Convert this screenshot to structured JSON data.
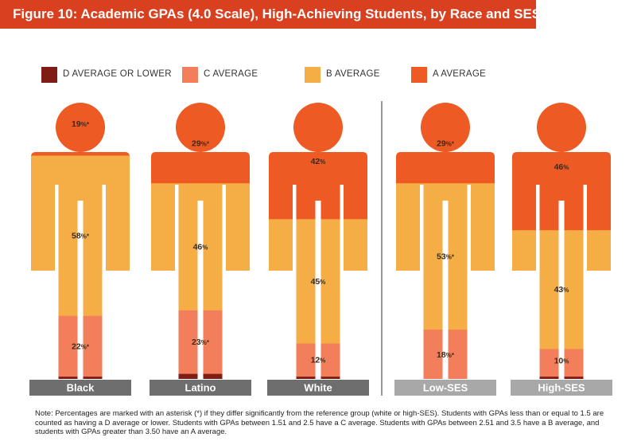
{
  "title": "Figure 10: Academic GPAs (4.0 Scale), High-Achieving Students, by Race and SES",
  "colors": {
    "title_bg": "#d9401f",
    "d_average": "#7d1d14",
    "c_average": "#f27e5b",
    "b_average": "#f5ae45",
    "a_average": "#ee5a24",
    "race_label_bg": "#6e6e6e",
    "ses_label_bg": "#a8a8a8",
    "divider": "#555555"
  },
  "chart_data": {
    "type": "pictogram-stacked",
    "stack_order_bottom_to_top": [
      "D AVERAGE OR LOWER",
      "C AVERAGE",
      "B AVERAGE",
      "A AVERAGE"
    ],
    "legend": [
      {
        "name": "D AVERAGE OR LOWER",
        "color": "#7d1d14"
      },
      {
        "name": "C AVERAGE",
        "color": "#f27e5b"
      },
      {
        "name": "B AVERAGE",
        "color": "#f5ae45"
      },
      {
        "name": "A AVERAGE",
        "color": "#ee5a24"
      }
    ],
    "groups": [
      {
        "label": "Black",
        "group": "race",
        "values": [
          1,
          22,
          58,
          19
        ],
        "labels": [
          "",
          "22%",
          "58%",
          "19%"
        ],
        "significant": [
          false,
          true,
          true,
          true
        ]
      },
      {
        "label": "Latino",
        "group": "race",
        "values": [
          2,
          23,
          46,
          29
        ],
        "labels": [
          "",
          "23%",
          "46%",
          "29%"
        ],
        "significant": [
          false,
          true,
          false,
          true
        ]
      },
      {
        "label": "White",
        "group": "race",
        "values": [
          1,
          12,
          45,
          42
        ],
        "labels": [
          "",
          "12%",
          "45%",
          "42%"
        ],
        "significant": [
          false,
          false,
          false,
          false
        ]
      },
      {
        "label": "Low-SES",
        "group": "ses",
        "values": [
          0,
          18,
          53,
          29
        ],
        "labels": [
          "",
          "18%",
          "53%",
          "29%"
        ],
        "significant": [
          false,
          true,
          true,
          true
        ]
      },
      {
        "label": "High-SES",
        "group": "ses",
        "values": [
          1,
          10,
          43,
          46
        ],
        "labels": [
          "",
          "10%",
          "43%",
          "46%"
        ],
        "significant": [
          false,
          false,
          false,
          false
        ]
      }
    ]
  },
  "note": "Note: Percentages are marked with an asterisk (*) if they differ significantly from the reference group (white or high-SES). Students with GPAs less than or equal to 1.5 are counted as having a D average or lower. Students with GPAs between 1.51 and 2.5 have a C average. Students with GPAs between 2.51 and 3.5 have a B average, and students with GPAs greater than 3.50 have an A average."
}
